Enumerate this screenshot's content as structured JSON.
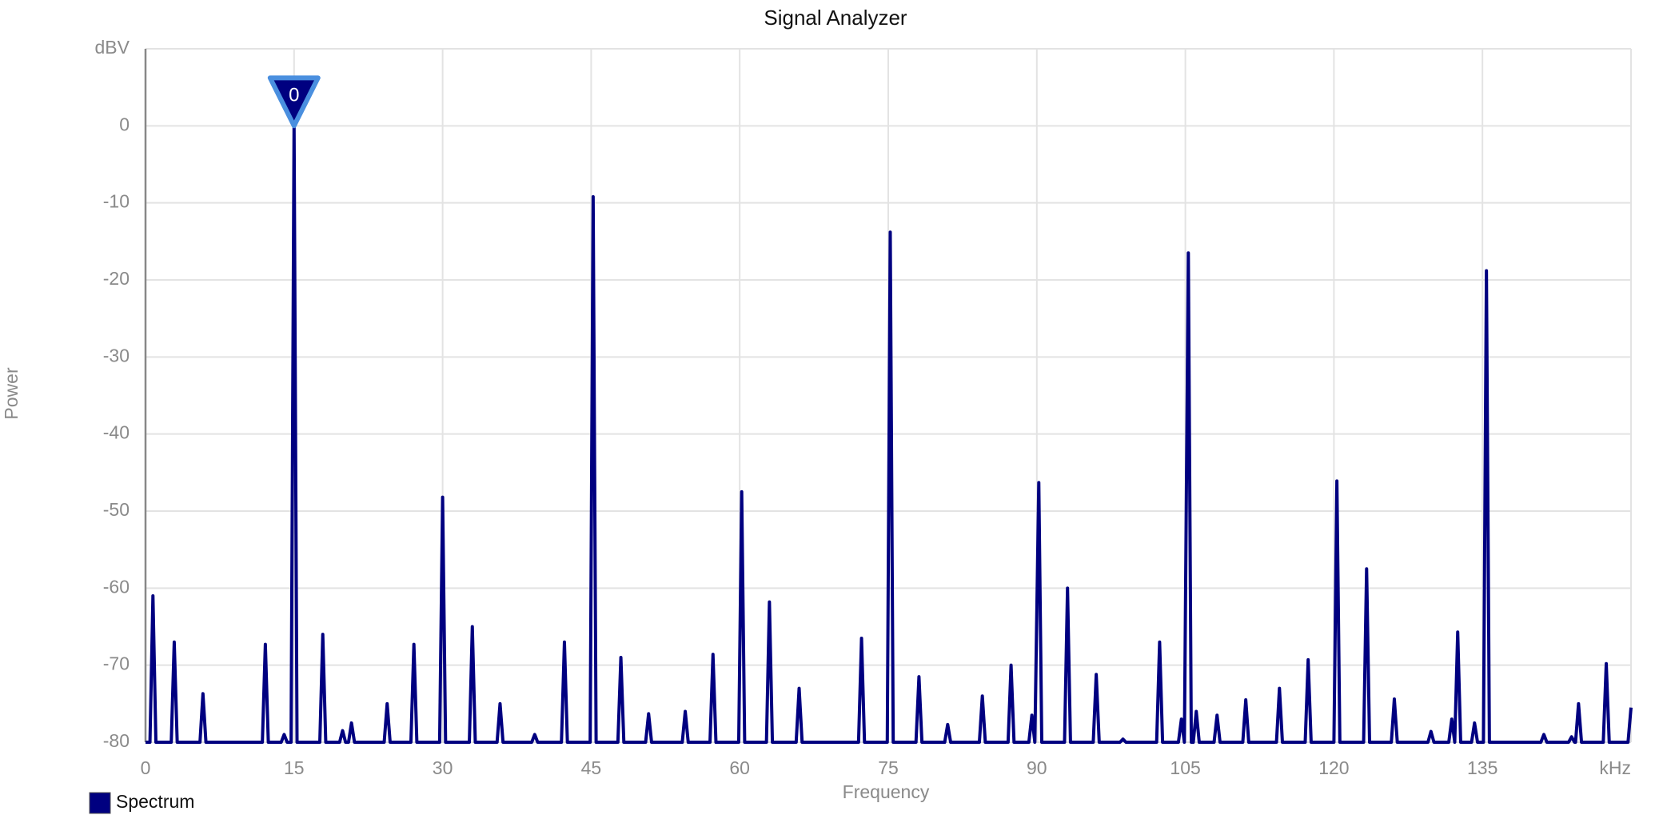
{
  "chart_data": {
    "type": "line",
    "title": "Signal Analyzer",
    "x_label": "Frequency",
    "y_label": "Power",
    "xlim": [
      0,
      150
    ],
    "ylim": [
      -80,
      10
    ],
    "xticks": [
      0,
      15,
      30,
      45,
      60,
      75,
      90,
      105,
      120,
      135,
      {
        "value": 150,
        "label": "kHz"
      }
    ],
    "yticks": [
      -80,
      -70,
      -60,
      -50,
      -40,
      -30,
      -20,
      -10,
      0,
      {
        "value": 10,
        "label": "dBV"
      }
    ],
    "grid": true,
    "legend": "bottom-left",
    "x": [
      0,
      0.45,
      0.75,
      1.05,
      2.6,
      2.9,
      3.2,
      5.5,
      5.8,
      6.1,
      11.8,
      12.1,
      12.4,
      13.7,
      14,
      14.3,
      14.7,
      15,
      15.3,
      17.6,
      17.9,
      18.2,
      19.6,
      19.9,
      20.2,
      20.5,
      20.8,
      21.1,
      24.1,
      24.4,
      24.7,
      26.8,
      27.1,
      27.4,
      29.7,
      30,
      30.3,
      32.7,
      33,
      33.3,
      35.5,
      35.8,
      36.1,
      39,
      39.3,
      39.6,
      42,
      42.3,
      42.6,
      44.9,
      45.2,
      45.5,
      47.7,
      48,
      48.3,
      50.5,
      50.8,
      51.1,
      54.2,
      54.5,
      54.8,
      57,
      57.3,
      57.6,
      59.9,
      60.2,
      60.5,
      62.7,
      63,
      63.3,
      65.7,
      66,
      66.3,
      72,
      72.3,
      72.6,
      74.9,
      75.2,
      75.5,
      77.8,
      78.1,
      78.4,
      80.7,
      81,
      81.3,
      84.2,
      84.5,
      84.8,
      87.1,
      87.4,
      87.7,
      89.2,
      89.5,
      89.8,
      90.2,
      90.5,
      92.8,
      93.1,
      93.4,
      95.7,
      96,
      96.3,
      98.4,
      98.7,
      99,
      102.1,
      102.4,
      102.7,
      104.3,
      104.6,
      104.9,
      105.3,
      105.6,
      105.8,
      106.1,
      106.4,
      107.9,
      108.2,
      108.5,
      110.8,
      111.1,
      111.4,
      114.2,
      114.5,
      114.8,
      117.1,
      117.4,
      117.7,
      120,
      120.3,
      120.6,
      123,
      123.3,
      123.6,
      125.8,
      126.1,
      126.4,
      129.5,
      129.8,
      130.1,
      131.6,
      131.9,
      132.2,
      132.5,
      132.8,
      133.9,
      134.2,
      134.5,
      135.1,
      135.4,
      135.7,
      140.9,
      141.2,
      141.5,
      143.7,
      144,
      144.3,
      144.4,
      144.7,
      145,
      147.2,
      147.5,
      147.8,
      149.7,
      150
    ],
    "series": [
      {
        "name": "Spectrum",
        "color": "#000080",
        "values": [
          -80,
          -80,
          -61,
          -80,
          -80,
          -67,
          -80,
          -80,
          -73.7,
          -80,
          -80,
          -67.3,
          -80,
          -80,
          -79,
          -80,
          -80,
          0,
          -80,
          -80,
          -66,
          -80,
          -80,
          -78.5,
          -80,
          -80,
          -77.5,
          -80,
          -80,
          -75,
          -80,
          -80,
          -67.3,
          -80,
          -80,
          -48.2,
          -80,
          -80,
          -65,
          -80,
          -80,
          -75,
          -80,
          -80,
          -79,
          -80,
          -80,
          -67,
          -80,
          -80,
          -9.2,
          -80,
          -80,
          -69,
          -80,
          -80,
          -76.3,
          -80,
          -80,
          -76,
          -80,
          -80,
          -68.6,
          -80,
          -80,
          -47.5,
          -80,
          -80,
          -61.8,
          -80,
          -80,
          -73,
          -80,
          -80,
          -66.5,
          -80,
          -80,
          -13.8,
          -80,
          -80,
          -71.5,
          -80,
          -80,
          -77.7,
          -80,
          -80,
          -74,
          -80,
          -80,
          -70,
          -80,
          -80,
          -76.5,
          -80,
          -46.3,
          -80,
          -80,
          -60,
          -80,
          -80,
          -71.2,
          -80,
          -80,
          -79.6,
          -80,
          -80,
          -67,
          -80,
          -80,
          -77,
          -80,
          -16.5,
          -80,
          -80,
          -76,
          -80,
          -80,
          -76.5,
          -80,
          -80,
          -74.5,
          -80,
          -80,
          -73,
          -80,
          -80,
          -69.3,
          -80,
          -80,
          -46.1,
          -80,
          -80,
          -57.5,
          -80,
          -80,
          -74.4,
          -80,
          -80,
          -78.6,
          -80,
          -80,
          -77,
          -80,
          -65.7,
          -80,
          -80,
          -77.5,
          -80,
          -80,
          -18.8,
          -80,
          -80,
          -79,
          -80,
          -80,
          -79.3,
          -80,
          -80,
          -75,
          -80,
          -80,
          -69.8,
          -80,
          -80,
          -75.5
        ]
      }
    ],
    "markers": [
      {
        "x": 15,
        "y": 0,
        "label": "0"
      }
    ]
  }
}
